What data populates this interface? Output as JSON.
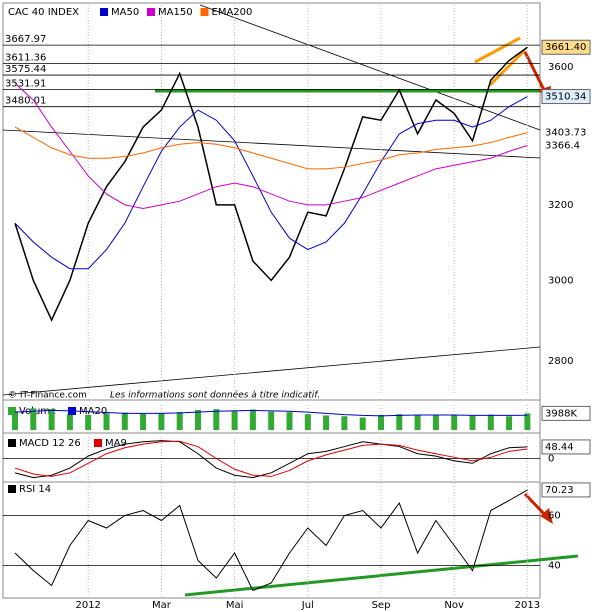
{
  "chart_data": [
    {
      "type": "line",
      "title": "CAC 40 INDEX",
      "log_scale": true,
      "ylim": [
        2720,
        3796
      ],
      "yticks": [
        2800,
        3000,
        3200,
        3600
      ],
      "levels": [
        3667.97,
        3611.36,
        3575.44,
        3531.91,
        3480.01
      ],
      "source": "© IT-Finance.com",
      "note": "Les informations sont données à titre indicatif.",
      "series": [
        {
          "name": null,
          "color": "#000000",
          "last_label": "3661.40",
          "values": [
            3150,
            3000,
            2900,
            3000,
            3150,
            3250,
            3320,
            3420,
            3470,
            3580,
            3420,
            3200,
            3200,
            3050,
            3000,
            3060,
            3180,
            3170,
            3300,
            3450,
            3440,
            3530,
            3400,
            3500,
            3460,
            3380,
            3560,
            3620,
            3661.4
          ]
        },
        {
          "name": "MA50",
          "color": "#0000cc",
          "last_label": "3510.34",
          "values": [
            3150,
            3100,
            3060,
            3030,
            3030,
            3080,
            3150,
            3250,
            3350,
            3420,
            3470,
            3440,
            3380,
            3280,
            3180,
            3110,
            3080,
            3100,
            3150,
            3230,
            3320,
            3400,
            3430,
            3440,
            3440,
            3420,
            3440,
            3480,
            3510.34
          ]
        },
        {
          "name": "MA150",
          "color": "#cc00cc",
          "last_label": "3366.4",
          "values": [
            3550,
            3500,
            3420,
            3350,
            3280,
            3230,
            3200,
            3190,
            3200,
            3210,
            3230,
            3250,
            3260,
            3250,
            3230,
            3210,
            3200,
            3200,
            3210,
            3220,
            3240,
            3260,
            3280,
            3300,
            3310,
            3320,
            3330,
            3350,
            3366.4
          ]
        },
        {
          "name": "EMA200",
          "color": "#ff6600",
          "last_label": "3403.73",
          "values": [
            3420,
            3390,
            3360,
            3340,
            3330,
            3330,
            3335,
            3345,
            3360,
            3370,
            3375,
            3370,
            3360,
            3345,
            3330,
            3315,
            3300,
            3300,
            3305,
            3315,
            3325,
            3340,
            3345,
            3355,
            3360,
            3365,
            3375,
            3390,
            3403.73
          ]
        }
      ]
    },
    {
      "type": "bar",
      "ylim": [
        0,
        6000000
      ],
      "series": [
        {
          "name": "Volume",
          "type": "bar",
          "color": "#33aa33",
          "last_label": "3988K",
          "values": [
            4500000,
            5200000,
            5000000,
            3800000,
            3600000,
            4000000,
            4200000,
            3900000,
            4100000,
            4300000,
            4800000,
            5000000,
            4600000,
            4900000,
            4400000,
            4300000,
            3800000,
            3500000,
            3300000,
            3000000,
            3600000,
            3800000,
            3700000,
            3500000,
            3600000,
            3400000,
            3700000,
            3300000,
            3988000
          ]
        },
        {
          "name": "MA20",
          "type": "line",
          "color": "#0000cc",
          "values": [
            4300000,
            4500000,
            4700000,
            4600000,
            4400000,
            4200000,
            4000000,
            4000000,
            4000000,
            4100000,
            4300000,
            4500000,
            4600000,
            4700000,
            4600000,
            4500000,
            4300000,
            4000000,
            3700000,
            3500000,
            3400000,
            3500000,
            3600000,
            3600000,
            3600000,
            3500000,
            3500000,
            3500000,
            3550000
          ]
        }
      ]
    },
    {
      "type": "line",
      "ylim": [
        -90,
        90
      ],
      "yticks": [
        0
      ],
      "series": [
        {
          "name": "MACD 12 26",
          "color": "#000000",
          "last_label": "48.44",
          "values": [
            -60,
            -80,
            -70,
            -40,
            10,
            40,
            60,
            70,
            75,
            70,
            20,
            -40,
            -70,
            -80,
            -60,
            -20,
            20,
            30,
            50,
            70,
            60,
            50,
            20,
            10,
            -10,
            -20,
            20,
            45,
            48.44
          ]
        },
        {
          "name": "MA9",
          "color": "#dd0000",
          "values": [
            -40,
            -65,
            -75,
            -60,
            -20,
            20,
            45,
            60,
            70,
            72,
            50,
            0,
            -45,
            -70,
            -75,
            -50,
            -10,
            15,
            35,
            55,
            60,
            55,
            35,
            20,
            5,
            -10,
            5,
            30,
            40
          ]
        }
      ]
    },
    {
      "type": "line",
      "ylim": [
        27,
        73
      ],
      "yticks": [
        40,
        60
      ],
      "categories": [
        null,
        null,
        null,
        null,
        "2012",
        null,
        null,
        null,
        "Mar",
        null,
        null,
        null,
        "Mai",
        null,
        null,
        null,
        "Jul",
        null,
        null,
        null,
        "Sep",
        null,
        null,
        null,
        "Nov",
        null,
        null,
        null,
        "2013"
      ],
      "series": [
        {
          "name": "RSI 14",
          "color": "#000000",
          "last_label": "70.23",
          "values": [
            45,
            38,
            32,
            48,
            58,
            55,
            60,
            62,
            58,
            64,
            42,
            35,
            45,
            30,
            33,
            45,
            55,
            48,
            60,
            62,
            55,
            65,
            45,
            58,
            48,
            38,
            62,
            66,
            70.23
          ]
        }
      ]
    }
  ]
}
